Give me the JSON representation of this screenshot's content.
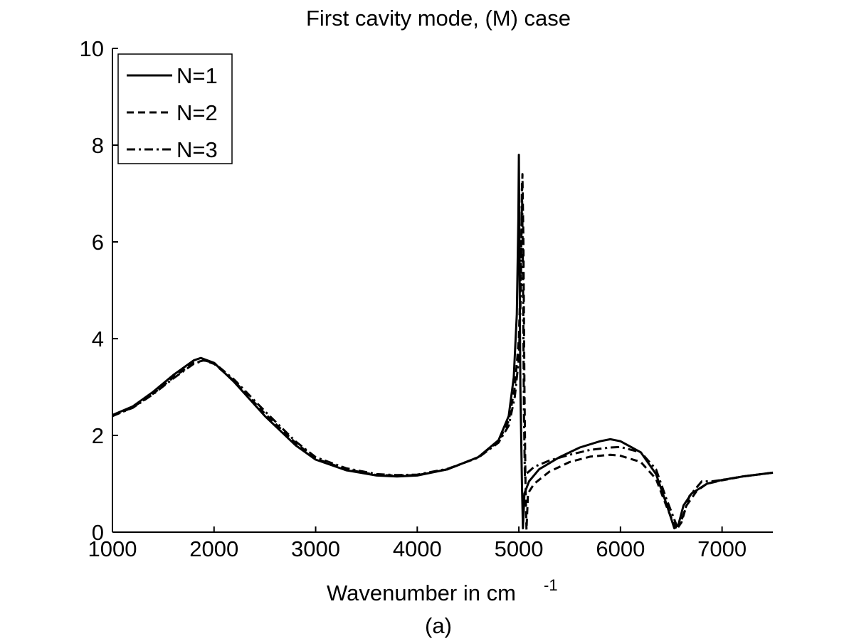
{
  "chart_data": {
    "type": "line",
    "title": "First cavity mode, (M) case",
    "xlabel": "Wavenumber in cm",
    "xlabel_superscript": "-1",
    "caption": "(a)",
    "xlim": [
      1000,
      7500
    ],
    "ylim": [
      0,
      10
    ],
    "x_ticks": [
      1000,
      2000,
      3000,
      4000,
      5000,
      6000,
      7000
    ],
    "y_ticks": [
      0,
      2,
      4,
      6,
      8,
      10
    ],
    "grid": false,
    "legend_position": "top-left",
    "series": [
      {
        "name": "N=1",
        "line_style": "solid",
        "color": "#000000",
        "points": [
          [
            1000,
            2.42
          ],
          [
            1200,
            2.6
          ],
          [
            1400,
            2.9
          ],
          [
            1600,
            3.25
          ],
          [
            1800,
            3.55
          ],
          [
            1870,
            3.6
          ],
          [
            2000,
            3.5
          ],
          [
            2200,
            3.1
          ],
          [
            2500,
            2.4
          ],
          [
            2800,
            1.8
          ],
          [
            3000,
            1.5
          ],
          [
            3300,
            1.28
          ],
          [
            3600,
            1.17
          ],
          [
            3800,
            1.15
          ],
          [
            4000,
            1.17
          ],
          [
            4300,
            1.3
          ],
          [
            4600,
            1.55
          ],
          [
            4800,
            1.9
          ],
          [
            4900,
            2.4
          ],
          [
            4950,
            3.2
          ],
          [
            4980,
            4.5
          ],
          [
            4995,
            6.5
          ],
          [
            5000,
            7.8
          ],
          [
            5005,
            6.0
          ],
          [
            5015,
            3.0
          ],
          [
            5030,
            1.0
          ],
          [
            5040,
            0.08
          ],
          [
            5055,
            0.8
          ],
          [
            5100,
            1.05
          ],
          [
            5200,
            1.3
          ],
          [
            5400,
            1.55
          ],
          [
            5600,
            1.75
          ],
          [
            5800,
            1.88
          ],
          [
            5900,
            1.92
          ],
          [
            6000,
            1.88
          ],
          [
            6200,
            1.65
          ],
          [
            6350,
            1.2
          ],
          [
            6450,
            0.6
          ],
          [
            6530,
            0.08
          ],
          [
            6570,
            0.15
          ],
          [
            6620,
            0.55
          ],
          [
            6700,
            0.8
          ],
          [
            6850,
            1.0
          ],
          [
            7000,
            1.08
          ],
          [
            7200,
            1.15
          ],
          [
            7500,
            1.23
          ]
        ]
      },
      {
        "name": "N=2",
        "line_style": "dashed",
        "color": "#000000",
        "points": [
          [
            1000,
            2.4
          ],
          [
            1200,
            2.58
          ],
          [
            1400,
            2.86
          ],
          [
            1600,
            3.2
          ],
          [
            1800,
            3.5
          ],
          [
            1900,
            3.55
          ],
          [
            2000,
            3.48
          ],
          [
            2200,
            3.12
          ],
          [
            2500,
            2.45
          ],
          [
            2800,
            1.85
          ],
          [
            3000,
            1.52
          ],
          [
            3300,
            1.3
          ],
          [
            3600,
            1.18
          ],
          [
            3800,
            1.17
          ],
          [
            4000,
            1.18
          ],
          [
            4300,
            1.3
          ],
          [
            4600,
            1.55
          ],
          [
            4800,
            1.88
          ],
          [
            4900,
            2.3
          ],
          [
            4960,
            3.0
          ],
          [
            5000,
            4.0
          ],
          [
            5020,
            5.5
          ],
          [
            5035,
            7.4
          ],
          [
            5045,
            6.0
          ],
          [
            5055,
            3.0
          ],
          [
            5065,
            1.0
          ],
          [
            5075,
            0.05
          ],
          [
            5090,
            0.8
          ],
          [
            5150,
            1.0
          ],
          [
            5300,
            1.25
          ],
          [
            5500,
            1.45
          ],
          [
            5700,
            1.56
          ],
          [
            5900,
            1.6
          ],
          [
            6000,
            1.58
          ],
          [
            6200,
            1.45
          ],
          [
            6350,
            1.1
          ],
          [
            6450,
            0.55
          ],
          [
            6550,
            0.05
          ],
          [
            6600,
            0.2
          ],
          [
            6650,
            0.55
          ],
          [
            6750,
            0.85
          ],
          [
            6850,
            1.0
          ],
          [
            7000,
            1.07
          ],
          [
            7200,
            1.15
          ],
          [
            7500,
            1.23
          ]
        ]
      },
      {
        "name": "N=3",
        "line_style": "dashdot",
        "color": "#000000",
        "points": [
          [
            1000,
            2.4
          ],
          [
            1200,
            2.57
          ],
          [
            1400,
            2.85
          ],
          [
            1600,
            3.18
          ],
          [
            1800,
            3.48
          ],
          [
            1900,
            3.55
          ],
          [
            2000,
            3.5
          ],
          [
            2200,
            3.15
          ],
          [
            2500,
            2.5
          ],
          [
            2800,
            1.88
          ],
          [
            3000,
            1.55
          ],
          [
            3300,
            1.32
          ],
          [
            3600,
            1.2
          ],
          [
            3800,
            1.18
          ],
          [
            4000,
            1.19
          ],
          [
            4300,
            1.31
          ],
          [
            4600,
            1.54
          ],
          [
            4800,
            1.85
          ],
          [
            4900,
            2.2
          ],
          [
            4960,
            2.8
          ],
          [
            5000,
            3.6
          ],
          [
            5020,
            5.0
          ],
          [
            5030,
            7.2
          ],
          [
            5040,
            5.5
          ],
          [
            5050,
            2.5
          ],
          [
            5060,
            1.1
          ],
          [
            5070,
            1.2
          ],
          [
            5150,
            1.35
          ],
          [
            5300,
            1.48
          ],
          [
            5500,
            1.6
          ],
          [
            5700,
            1.7
          ],
          [
            5900,
            1.75
          ],
          [
            6000,
            1.76
          ],
          [
            6200,
            1.65
          ],
          [
            6350,
            1.3
          ],
          [
            6450,
            0.7
          ],
          [
            6560,
            0.1
          ],
          [
            6610,
            0.3
          ],
          [
            6680,
            0.75
          ],
          [
            6800,
            1.05
          ],
          [
            6900,
            1.05
          ],
          [
            7000,
            1.08
          ],
          [
            7200,
            1.15
          ],
          [
            7500,
            1.23
          ]
        ]
      }
    ]
  }
}
